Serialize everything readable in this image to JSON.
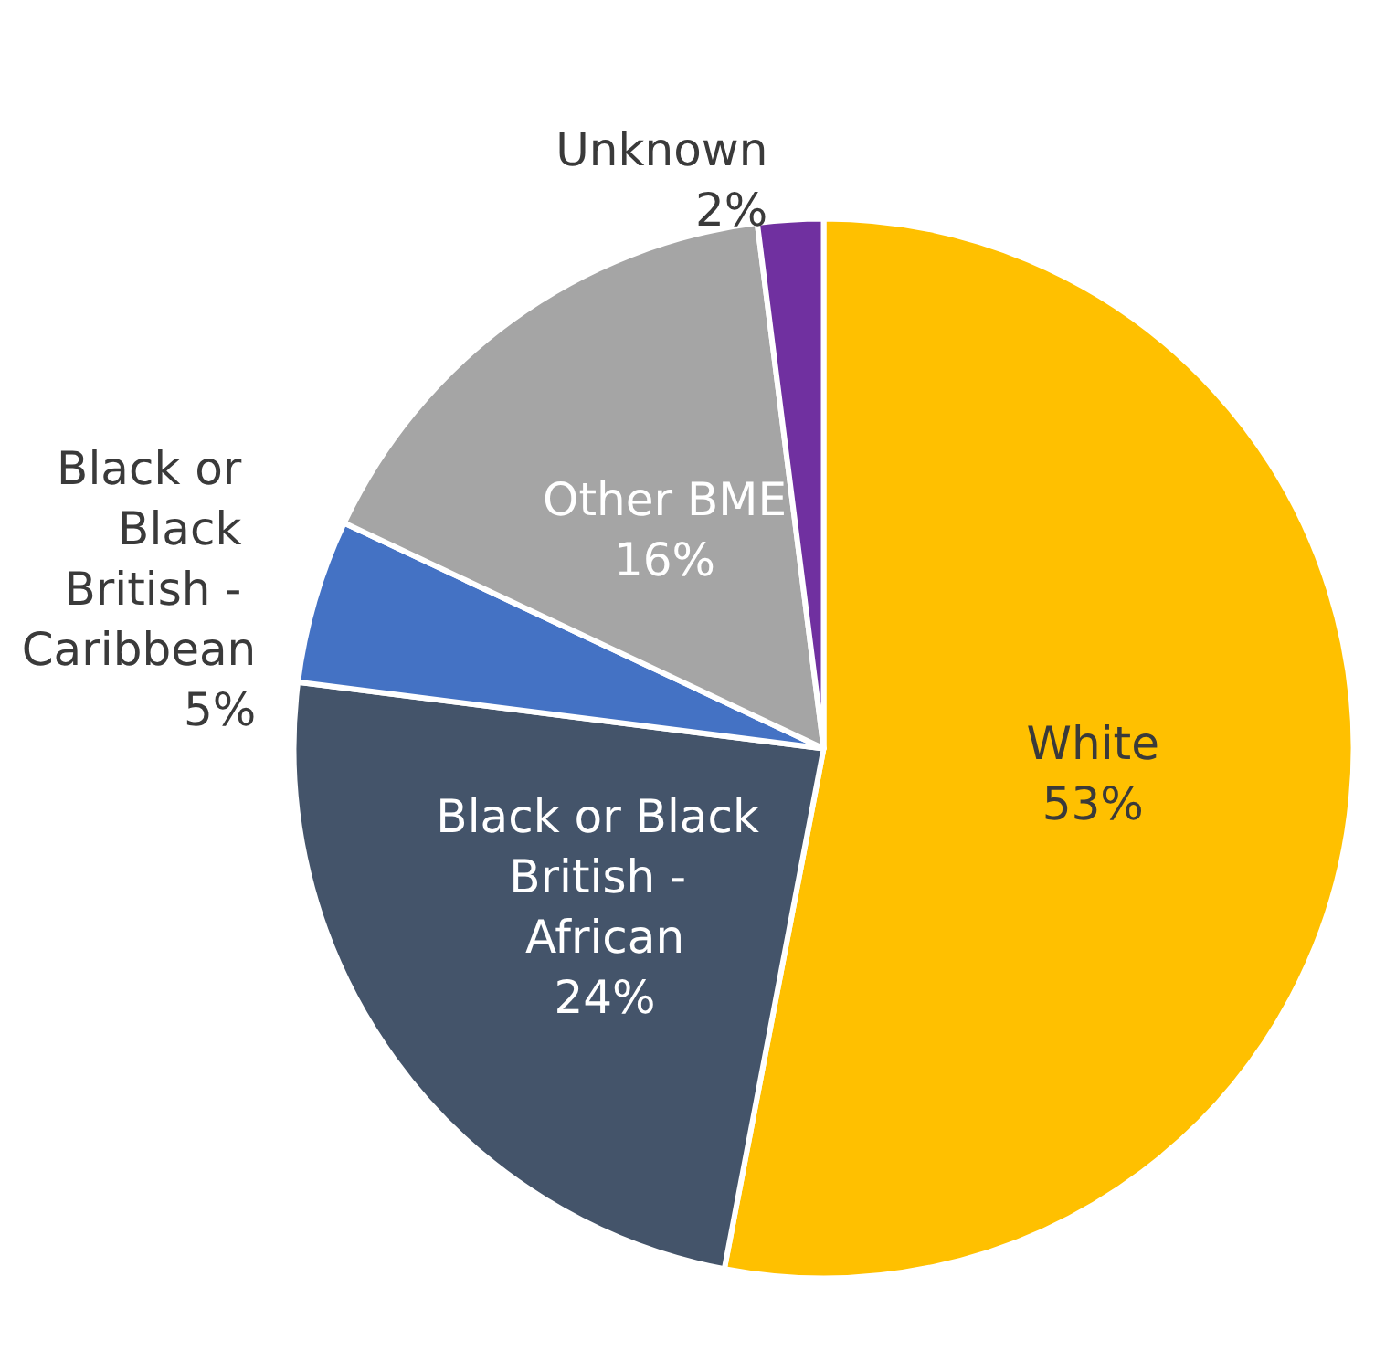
{
  "chart_data": {
    "type": "pie",
    "categories": [
      "White",
      "Black or Black British - African",
      "Black or Black British - Caribbean",
      "Other BME",
      "Unknown"
    ],
    "values": [
      53,
      24,
      5,
      16,
      2
    ],
    "value_labels": [
      "53%",
      "24%",
      "5%",
      "16%",
      "2%"
    ],
    "colors": [
      "#ffc000",
      "#44546a",
      "#4472c4",
      "#a5a5a5",
      "#7030a0"
    ],
    "legend": false
  }
}
